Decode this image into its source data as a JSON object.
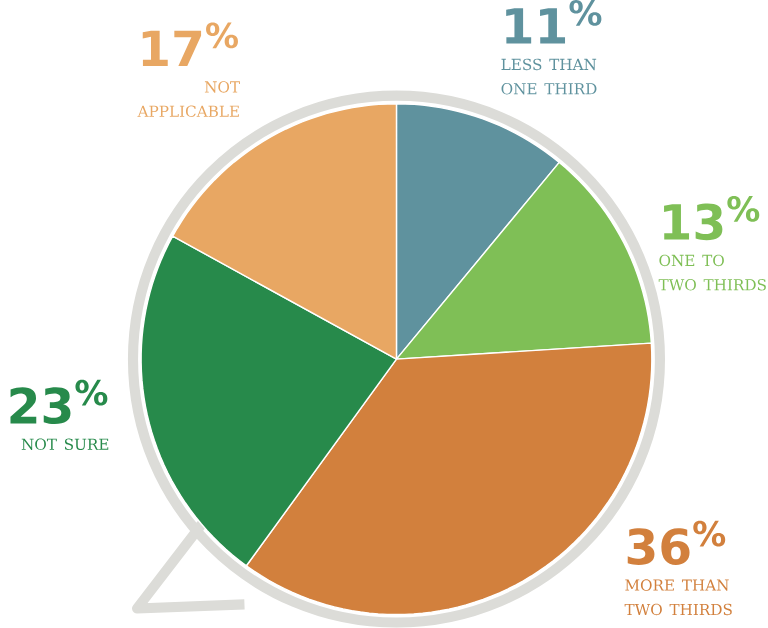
{
  "chart_data": {
    "type": "pie",
    "categories": [
      "LESS THAN ONE THIRD",
      "ONE TO TWO THIRDS",
      "MORE THAN TWO THIRDS",
      "NOT SURE",
      "NOT APPLICABLE"
    ],
    "values": [
      11,
      13,
      36,
      23,
      17
    ],
    "value_labels": [
      "11$^{%}$",
      "13$^{%}$",
      "36$^{%}$",
      "23$^{%}$",
      "17$^{%}$"
    ],
    "colors": [
      "#5f929e",
      "#7fbf56",
      "#d2803d",
      "#278a4b",
      "#e8a763"
    ]
  }
}
